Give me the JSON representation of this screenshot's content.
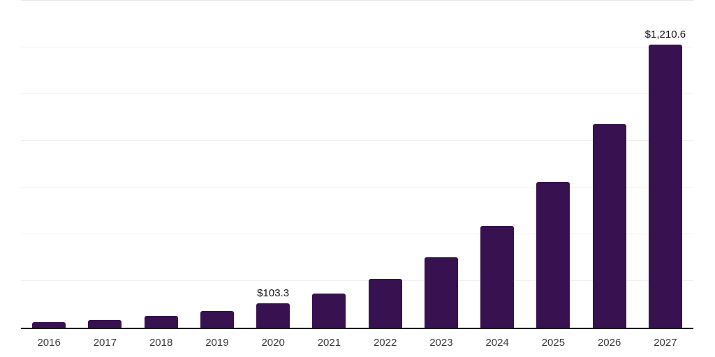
{
  "chart_data": {
    "type": "bar",
    "title": "",
    "xlabel": "",
    "ylabel": "",
    "categories": [
      "2016",
      "2017",
      "2018",
      "2019",
      "2020",
      "2021",
      "2022",
      "2023",
      "2024",
      "2025",
      "2026",
      "2027"
    ],
    "values": [
      25,
      33,
      51,
      72,
      103.3,
      147,
      210,
      303,
      436,
      625,
      872,
      1210.6
    ],
    "point_labels": [
      "",
      "",
      "",
      "",
      "$103.3",
      "",
      "",
      "",
      "",
      "",
      "",
      "$1,210.6"
    ],
    "ylim": [
      0,
      1400
    ],
    "gridline_step": 200,
    "grid": true,
    "legend": false,
    "colors": {
      "bar": "#371150",
      "axis_line": "#1a1a1a",
      "gridline": "#f0f0f2",
      "top_gridline": "#e7e7ea",
      "point_label_text": "#111111",
      "tick_label_text": "#3b3b3b",
      "background": "#ffffff"
    }
  }
}
